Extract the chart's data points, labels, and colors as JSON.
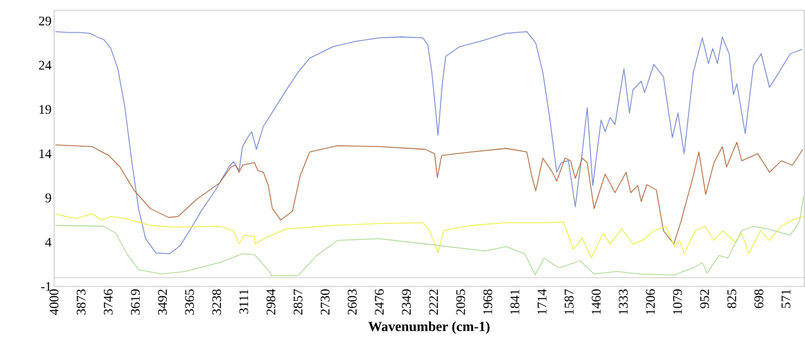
{
  "chart_data": {
    "type": "line",
    "xlabel": "**Wavenumber (cm-1)**",
    "xlim": [
      4000,
      485
    ],
    "ylim": [
      -1,
      30.2
    ],
    "xticks": [
      4000,
      3873,
      3746,
      3619,
      3492,
      3365,
      3238,
      3111,
      2984,
      2857,
      2730,
      2603,
      2476,
      2349,
      2222,
      2095,
      1968,
      1841,
      1714,
      1587,
      1460,
      1333,
      1206,
      1079,
      952,
      825,
      698,
      571
    ],
    "yticks": [
      -1,
      4,
      9,
      14,
      19,
      24,
      29
    ],
    "ref_lines": [
      {
        "axis": "y",
        "value": 0,
        "color": "#c0c0c0"
      }
    ],
    "series": [
      {
        "color": "#7b8fd4",
        "x": [
          3994,
          3929,
          3880,
          3831,
          3799,
          3766,
          3734,
          3701,
          3669,
          3636,
          3604,
          3571,
          3523,
          3458,
          3409,
          3360,
          3311,
          3246,
          3181,
          3159,
          3133,
          3117,
          3091,
          3074,
          3052,
          3019,
          2964,
          2912,
          2857,
          2802,
          2694,
          2587,
          2477,
          2370,
          2272,
          2249,
          2230,
          2201,
          2181,
          2165,
          2100,
          1990,
          1882,
          1785,
          1743,
          1710,
          1678,
          1645,
          1623,
          1590,
          1558,
          1525,
          1502,
          1476,
          1437,
          1418,
          1395,
          1372,
          1330,
          1304,
          1288,
          1249,
          1233,
          1190,
          1145,
          1103,
          1077,
          1048,
          1005,
          963,
          934,
          914,
          892,
          869,
          837,
          817,
          801,
          762,
          723,
          687,
          648,
          616,
          551,
          495
        ],
        "values": [
          27.8,
          27.7,
          27.7,
          27.6,
          27.2,
          26.9,
          25.9,
          23.6,
          19.4,
          13.2,
          7.8,
          4.4,
          2.8,
          2.7,
          3.6,
          5.5,
          7.5,
          9.8,
          12.5,
          13.1,
          12.1,
          14.8,
          15.9,
          16.5,
          14.5,
          17.1,
          19.2,
          21.2,
          23.2,
          24.8,
          26.1,
          26.7,
          27.1,
          27.2,
          27.1,
          26.3,
          23.2,
          16.1,
          21.9,
          25.0,
          26.1,
          26.8,
          27.6,
          27.8,
          26.5,
          23.2,
          18.1,
          11.9,
          13.0,
          13.2,
          8.0,
          14.2,
          19.2,
          10.4,
          17.8,
          16.5,
          18.1,
          17.3,
          23.6,
          18.6,
          21.2,
          22.2,
          20.9,
          24.1,
          22.7,
          15.8,
          18.6,
          14.0,
          23.2,
          27.1,
          24.2,
          25.9,
          24.2,
          27.2,
          25.3,
          20.7,
          21.9,
          16.3,
          24.0,
          25.3,
          21.5,
          22.7,
          25.3,
          25.8
        ]
      },
      {
        "color": "#b5744a",
        "x": [
          3994,
          3821,
          3776,
          3743,
          3691,
          3626,
          3549,
          3464,
          3419,
          3334,
          3224,
          3172,
          3149,
          3133,
          3117,
          3061,
          3045,
          3019,
          2996,
          2977,
          2938,
          2883,
          2847,
          2802,
          2672,
          2477,
          2262,
          2217,
          2204,
          2184,
          2045,
          1882,
          1785,
          1762,
          1743,
          1710,
          1665,
          1645,
          1606,
          1580,
          1558,
          1525,
          1502,
          1470,
          1418,
          1372,
          1320,
          1298,
          1265,
          1249,
          1223,
          1178,
          1145,
          1096,
          1061,
          1005,
          979,
          947,
          908,
          869,
          849,
          801,
          778,
          703,
          648,
          593,
          541,
          492
        ],
        "values": [
          15.0,
          14.8,
          14.2,
          13.8,
          12.5,
          9.9,
          7.8,
          6.8,
          6.9,
          8.8,
          10.7,
          12.5,
          12.7,
          11.9,
          12.7,
          13.0,
          12.1,
          11.9,
          10.4,
          7.8,
          6.5,
          7.5,
          11.5,
          14.2,
          14.9,
          14.8,
          14.5,
          14.0,
          11.3,
          13.8,
          14.2,
          14.6,
          14.2,
          11.5,
          9.8,
          13.5,
          11.9,
          10.9,
          13.5,
          13.2,
          11.2,
          13.5,
          13.0,
          7.8,
          11.7,
          9.6,
          11.9,
          9.6,
          10.4,
          8.6,
          10.5,
          9.9,
          5.3,
          3.8,
          6.5,
          11.5,
          14.2,
          9.4,
          13.0,
          14.8,
          12.5,
          15.3,
          13.2,
          14.0,
          11.9,
          13.2,
          12.7,
          14.5
        ]
      },
      {
        "color": "#f0f050",
        "x": [
          3994,
          3929,
          3896,
          3821,
          3776,
          3734,
          3669,
          3549,
          3442,
          3224,
          3159,
          3133,
          3107,
          3061,
          3058,
          3009,
          2912,
          2694,
          2477,
          2272,
          2240,
          2201,
          2175,
          2045,
          1882,
          1720,
          1690,
          1613,
          1567,
          1525,
          1483,
          1428,
          1395,
          1340,
          1288,
          1242,
          1190,
          1135,
          1093,
          1070,
          1048,
          996,
          950,
          908,
          866,
          811,
          778,
          746,
          690,
          648,
          593,
          541,
          488
        ],
        "values": [
          7.2,
          6.8,
          6.7,
          7.2,
          6.5,
          6.9,
          6.7,
          5.9,
          5.7,
          5.8,
          5.3,
          3.8,
          4.8,
          4.6,
          3.8,
          4.5,
          5.5,
          5.9,
          6.1,
          6.2,
          5.3,
          2.8,
          5.3,
          5.9,
          6.2,
          6.2,
          6.2,
          6.3,
          3.2,
          4.5,
          2.2,
          5.0,
          3.8,
          5.5,
          3.8,
          4.2,
          5.3,
          5.8,
          3.5,
          4.2,
          2.7,
          5.3,
          5.8,
          4.2,
          5.3,
          4.0,
          5.0,
          2.7,
          5.3,
          4.2,
          5.8,
          6.5,
          6.9
        ]
      },
      {
        "color": "#b3dc9c",
        "x": [
          3994,
          3766,
          3710,
          3659,
          3604,
          3497,
          3386,
          3224,
          3117,
          3061,
          3009,
          2977,
          2987,
          2857,
          2769,
          2672,
          2477,
          2262,
          1980,
          1882,
          1795,
          1746,
          1704,
          1662,
          1632,
          1535,
          1470,
          1363,
          1255,
          1093,
          996,
          963,
          940,
          885,
          843,
          778,
          723,
          658,
          551,
          508,
          488
        ],
        "values": [
          5.9,
          5.8,
          5.0,
          2.7,
          0.9,
          0.4,
          0.7,
          1.7,
          2.7,
          2.6,
          1.2,
          0.2,
          0.2,
          0.2,
          2.5,
          4.2,
          4.4,
          3.8,
          3.0,
          3.5,
          2.7,
          0.3,
          2.2,
          1.5,
          1.1,
          1.9,
          0.4,
          0.7,
          0.4,
          0.3,
          1.2,
          1.7,
          0.5,
          2.5,
          2.2,
          5.3,
          5.8,
          5.5,
          4.8,
          6.3,
          9.2
        ]
      }
    ]
  }
}
